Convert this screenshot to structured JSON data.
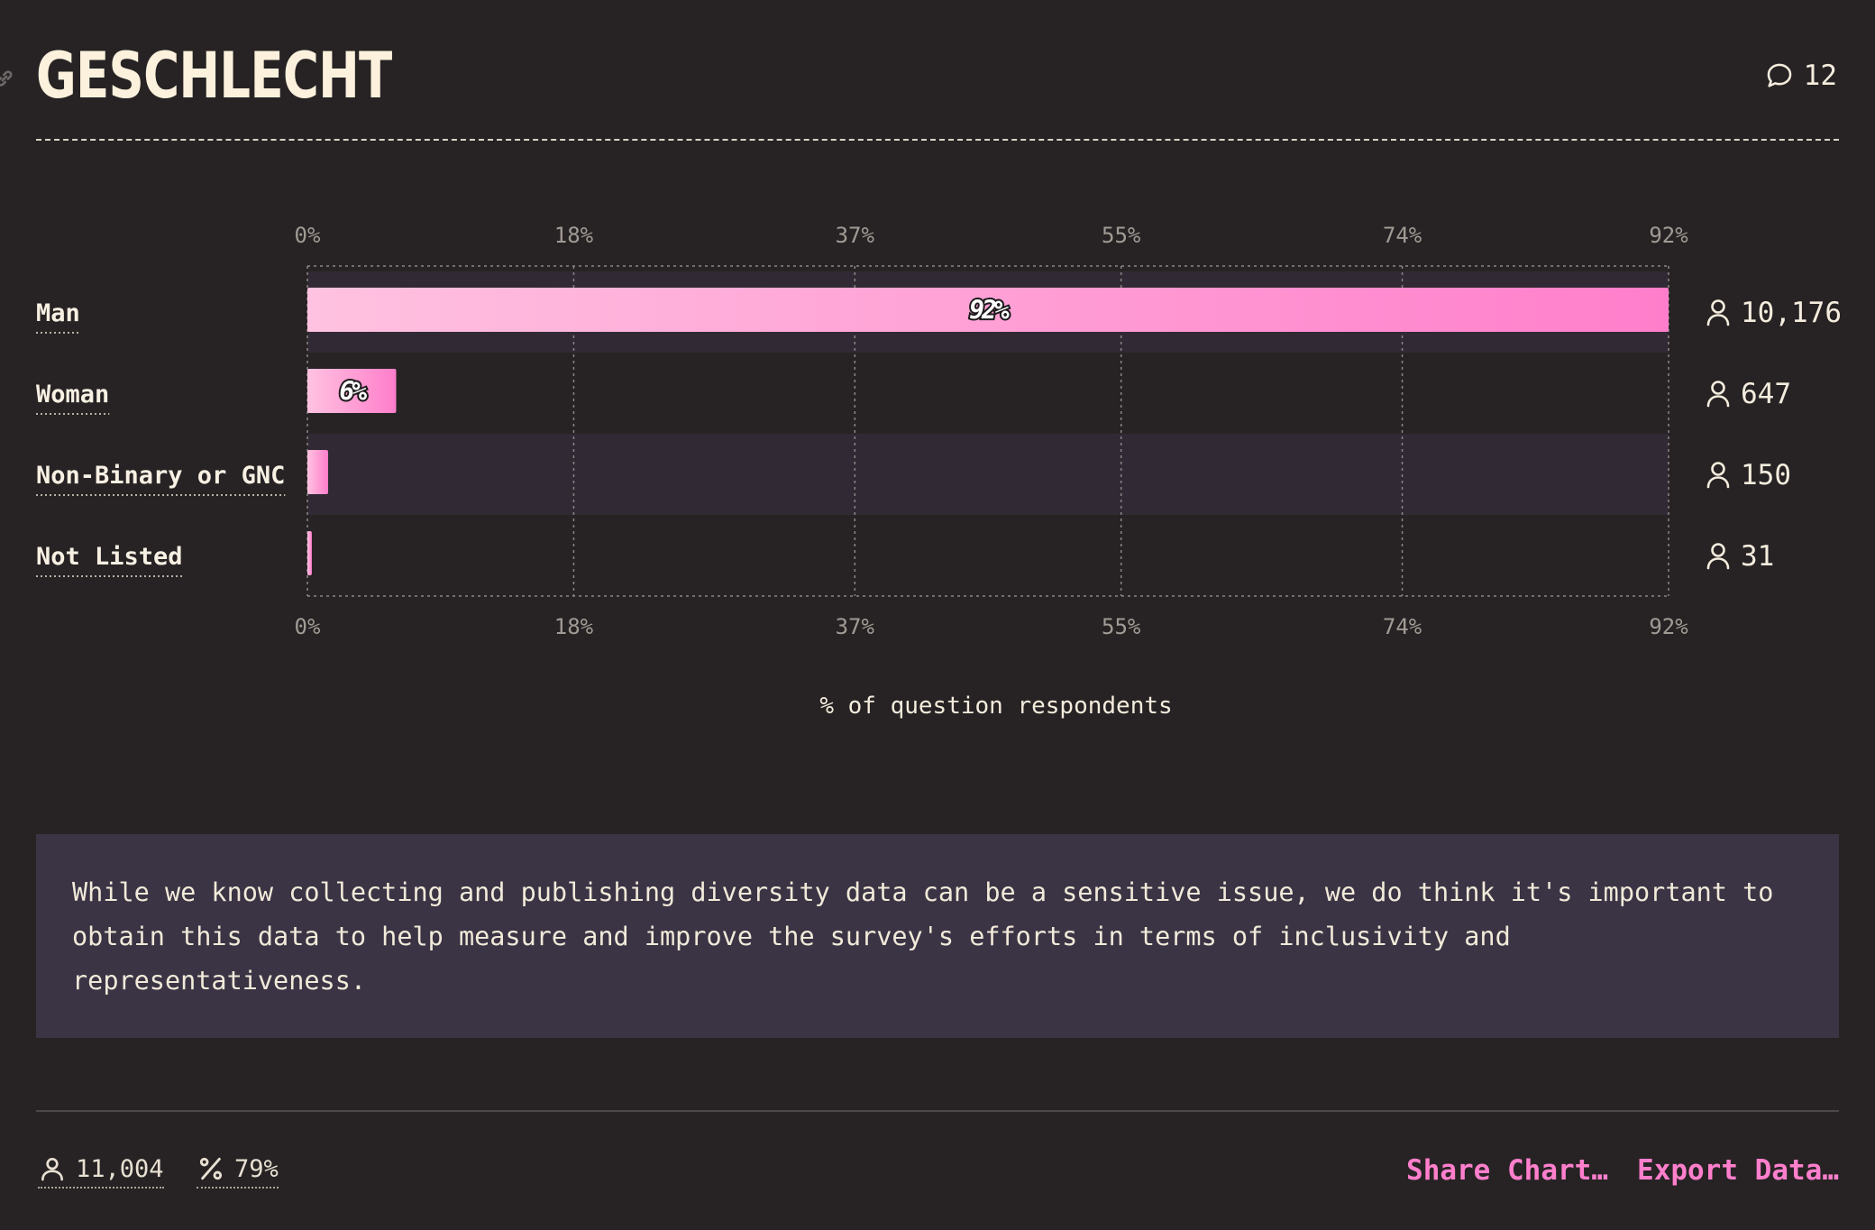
{
  "header": {
    "title": "GESCHLECHT",
    "comment_count": "12"
  },
  "chart_data": {
    "type": "bar",
    "orientation": "horizontal",
    "categories": [
      "Man",
      "Woman",
      "Non-Binary or GNC",
      "Not Listed"
    ],
    "values": [
      92,
      6,
      1.4,
      0.3
    ],
    "value_labels": [
      "92%",
      "6%",
      "",
      ""
    ],
    "counts": [
      "10,176",
      "647",
      "150",
      "31"
    ],
    "xticks": [
      0,
      18,
      37,
      55,
      74,
      92
    ],
    "xtick_labels": [
      "0%",
      "18%",
      "37%",
      "55%",
      "74%",
      "92%"
    ],
    "xlim": [
      0,
      92
    ],
    "xlabel": "% of question respondents",
    "grid": "vertical dotted",
    "colors": {
      "bar_start": "#ffc2e0",
      "bar_end": "#ff7ecb",
      "row_band": "#312a35",
      "grid": "#8b8584",
      "axis_text": "#a19b95",
      "label_text": "#f7f0e3"
    }
  },
  "note": {
    "text": "While we know collecting and publishing diversity data can be a sensitive issue, we do think it's important to obtain this data to help measure and improve the survey's efforts in terms of inclusivity and representativeness."
  },
  "footer": {
    "respondents": "11,004",
    "percent": "79%",
    "share_label": "Share Chart…",
    "export_label": "Export Data…"
  }
}
